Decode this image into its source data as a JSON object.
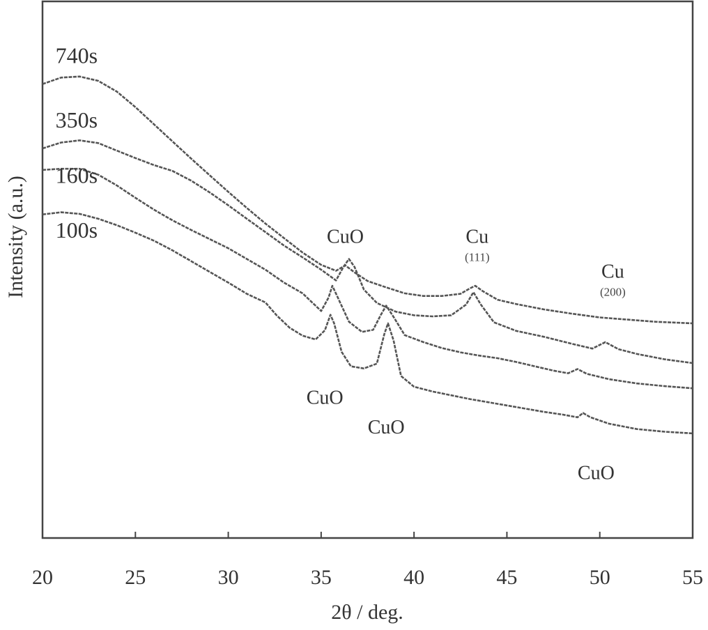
{
  "chart_data": {
    "type": "line",
    "title": "",
    "xlabel": "2θ / deg.",
    "ylabel": "Intensity (a.u.)",
    "xlim": [
      20,
      55
    ],
    "ylim": [
      0,
      100
    ],
    "x_ticks": [
      20,
      25,
      30,
      35,
      40,
      45,
      50,
      55
    ],
    "x_tick_labels": [
      "20",
      "25",
      "30",
      "35",
      "40",
      "45",
      "50",
      "55"
    ],
    "y_ticks_shown": false,
    "grid": false,
    "colors": {
      "axis": "#444444",
      "line": "#555555",
      "text": "#333333"
    },
    "series": [
      {
        "name": "740s",
        "points": [
          [
            20,
            84.6
          ],
          [
            21,
            85.8
          ],
          [
            22,
            86.0
          ],
          [
            23,
            85.2
          ],
          [
            24,
            83.2
          ],
          [
            25,
            80.3
          ],
          [
            26,
            77.1
          ],
          [
            27,
            73.9
          ],
          [
            28,
            70.7
          ],
          [
            29,
            67.6
          ],
          [
            30,
            64.5
          ],
          [
            31,
            61.5
          ],
          [
            32,
            58.6
          ],
          [
            33,
            55.9
          ],
          [
            34,
            53.2
          ],
          [
            35,
            50.9
          ],
          [
            35.8,
            49.8
          ],
          [
            36.3,
            50.8
          ],
          [
            36.8,
            49.5
          ],
          [
            37.5,
            47.9
          ],
          [
            38.5,
            46.7
          ],
          [
            39.5,
            45.6
          ],
          [
            40.5,
            45.1
          ],
          [
            41.5,
            45.1
          ],
          [
            42.5,
            45.5
          ],
          [
            43.0,
            46.5
          ],
          [
            43.3,
            47.0
          ],
          [
            43.7,
            46.0
          ],
          [
            44.5,
            44.4
          ],
          [
            45.5,
            43.6
          ],
          [
            47,
            42.6
          ],
          [
            48.5,
            41.8
          ],
          [
            50,
            41.1
          ],
          [
            51.5,
            40.7
          ],
          [
            53,
            40.3
          ],
          [
            55,
            40.0
          ]
        ]
      },
      {
        "name": "350s",
        "points": [
          [
            20,
            72.6
          ],
          [
            21,
            73.7
          ],
          [
            22,
            74.1
          ],
          [
            23,
            73.6
          ],
          [
            24,
            72.2
          ],
          [
            25,
            70.8
          ],
          [
            26,
            69.5
          ],
          [
            27,
            68.4
          ],
          [
            28,
            66.6
          ],
          [
            29,
            64.4
          ],
          [
            30,
            62.0
          ],
          [
            31,
            59.5
          ],
          [
            32,
            57.0
          ],
          [
            33,
            54.5
          ],
          [
            34,
            52.3
          ],
          [
            35,
            50.0
          ],
          [
            35.8,
            48.0
          ],
          [
            36.2,
            50.5
          ],
          [
            36.5,
            52.0
          ],
          [
            36.8,
            50.5
          ],
          [
            37.3,
            46.3
          ],
          [
            38,
            43.8
          ],
          [
            39,
            42.2
          ],
          [
            40,
            41.5
          ],
          [
            41,
            41.3
          ],
          [
            42,
            41.5
          ],
          [
            42.8,
            43.5
          ],
          [
            43.2,
            45.8
          ],
          [
            43.6,
            43.5
          ],
          [
            44.3,
            40.2
          ],
          [
            45.5,
            38.6
          ],
          [
            47,
            37.5
          ],
          [
            48.5,
            36.2
          ],
          [
            49.6,
            35.3
          ],
          [
            50.3,
            36.5
          ],
          [
            51,
            35.2
          ],
          [
            52,
            34.3
          ],
          [
            53.5,
            33.3
          ],
          [
            55,
            32.6
          ]
        ]
      },
      {
        "name": "160s",
        "points": [
          [
            20,
            68.6
          ],
          [
            21,
            68.8
          ],
          [
            22,
            68.8
          ],
          [
            23,
            67.7
          ],
          [
            24,
            65.7
          ],
          [
            25,
            63.4
          ],
          [
            26,
            61.2
          ],
          [
            27,
            59.2
          ],
          [
            28,
            57.4
          ],
          [
            29,
            55.7
          ],
          [
            30,
            54.0
          ],
          [
            31,
            52.0
          ],
          [
            32,
            50.0
          ],
          [
            33,
            47.6
          ],
          [
            34,
            45.6
          ],
          [
            35,
            42.3
          ],
          [
            35.4,
            44.8
          ],
          [
            35.6,
            47.0
          ],
          [
            35.9,
            44.8
          ],
          [
            36.5,
            40.3
          ],
          [
            37.2,
            38.4
          ],
          [
            37.8,
            38.8
          ],
          [
            38.2,
            41.5
          ],
          [
            38.5,
            43.3
          ],
          [
            38.9,
            41.2
          ],
          [
            39.5,
            37.8
          ],
          [
            40.5,
            36.5
          ],
          [
            41.5,
            35.4
          ],
          [
            42.5,
            34.6
          ],
          [
            43.5,
            34.0
          ],
          [
            44.5,
            33.5
          ],
          [
            45.5,
            32.8
          ],
          [
            46.5,
            32.0
          ],
          [
            47.5,
            31.2
          ],
          [
            48.3,
            30.7
          ],
          [
            48.8,
            31.5
          ],
          [
            49.3,
            30.6
          ],
          [
            50.5,
            29.6
          ],
          [
            52,
            28.8
          ],
          [
            53.5,
            28.3
          ],
          [
            55,
            27.9
          ]
        ]
      },
      {
        "name": "100s",
        "points": [
          [
            20,
            60.3
          ],
          [
            21,
            60.7
          ],
          [
            22,
            60.4
          ],
          [
            23,
            59.5
          ],
          [
            24,
            58.3
          ],
          [
            25,
            56.9
          ],
          [
            26,
            55.4
          ],
          [
            27,
            53.6
          ],
          [
            28,
            51.6
          ],
          [
            29,
            49.6
          ],
          [
            30,
            47.6
          ],
          [
            31,
            45.5
          ],
          [
            32,
            43.9
          ],
          [
            32.6,
            41.5
          ],
          [
            33.3,
            39.2
          ],
          [
            34,
            37.7
          ],
          [
            34.7,
            37.0
          ],
          [
            35.2,
            38.7
          ],
          [
            35.5,
            41.6
          ],
          [
            35.7,
            40.0
          ],
          [
            36.1,
            34.7
          ],
          [
            36.6,
            32.0
          ],
          [
            37.3,
            31.6
          ],
          [
            38.0,
            32.5
          ],
          [
            38.4,
            38.0
          ],
          [
            38.6,
            40.0
          ],
          [
            38.9,
            36.8
          ],
          [
            39.3,
            30.2
          ],
          [
            40,
            28.2
          ],
          [
            41,
            27.3
          ],
          [
            42,
            26.6
          ],
          [
            43,
            25.9
          ],
          [
            44,
            25.3
          ],
          [
            45,
            24.7
          ],
          [
            46,
            24.1
          ],
          [
            47,
            23.5
          ],
          [
            48,
            23.0
          ],
          [
            48.8,
            22.5
          ],
          [
            49.1,
            23.3
          ],
          [
            49.5,
            22.5
          ],
          [
            50.5,
            21.3
          ],
          [
            52,
            20.3
          ],
          [
            53.5,
            19.8
          ],
          [
            55,
            19.5
          ]
        ]
      }
    ],
    "series_label_positions": [
      {
        "name": "740s",
        "x": 20.7,
        "y": 88.5
      },
      {
        "name": "350s",
        "x": 20.7,
        "y": 76.5
      },
      {
        "name": "160s",
        "x": 20.7,
        "y": 66.2
      },
      {
        "name": "100s",
        "x": 20.7,
        "y": 56.0
      }
    ],
    "annotations": [
      {
        "label": "CuO",
        "sub": "",
        "x": 36.3,
        "y": 55.0
      },
      {
        "label": "Cu",
        "sub": "(111)",
        "x": 43.4,
        "y": 55.0
      },
      {
        "label": "Cu",
        "sub": "(200)",
        "x": 50.7,
        "y": 48.5
      },
      {
        "label": "CuO",
        "sub": "",
        "x": 35.2,
        "y": 25.0
      },
      {
        "label": "CuO",
        "sub": "",
        "x": 38.5,
        "y": 19.5
      },
      {
        "label": "CuO",
        "sub": "",
        "x": 49.8,
        "y": 11.0
      }
    ]
  }
}
